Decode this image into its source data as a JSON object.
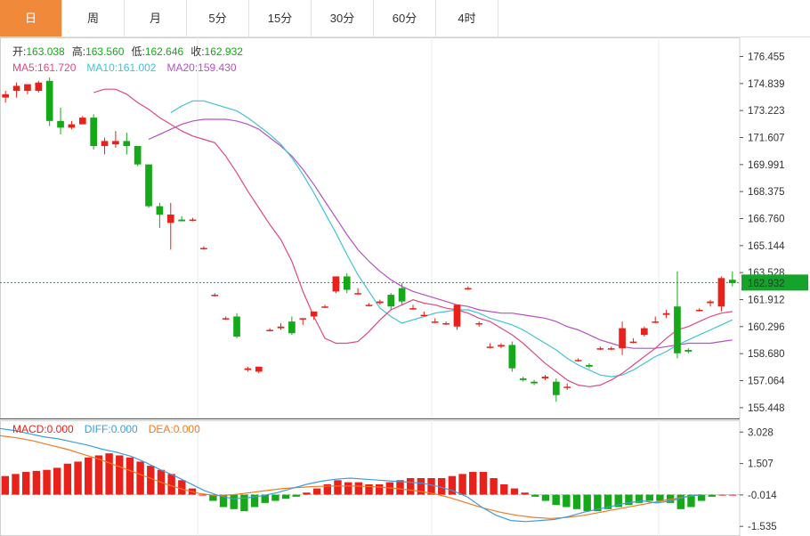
{
  "tabs": [
    {
      "label": "日",
      "active": true
    },
    {
      "label": "周",
      "active": false
    },
    {
      "label": "月",
      "active": false
    },
    {
      "label": "5分",
      "active": false
    },
    {
      "label": "15分",
      "active": false
    },
    {
      "label": "30分",
      "active": false
    },
    {
      "label": "60分",
      "active": false
    },
    {
      "label": "4时",
      "active": false
    }
  ],
  "colors": {
    "up": "#e8211a",
    "down": "#15a819",
    "ma5": "#e0487e",
    "ma10": "#3fc3d6",
    "ma20": "#b452c2",
    "diff": "#3c9ee0",
    "dea": "#f07a24",
    "current": "#14a42b",
    "accent": "#f08a3a"
  },
  "chart_data": {
    "type": "candlestick",
    "ohlc_legend": {
      "open_label": "开:",
      "open": "163.038",
      "high_label": "高:",
      "high": "163.560",
      "low_label": "低:",
      "low": "162.646",
      "close_label": "收:",
      "close": "162.932"
    },
    "ma_legend": [
      {
        "name": "MA5:",
        "value": "161.720",
        "color_key": "ma5"
      },
      {
        "name": "MA10:",
        "value": "161.002",
        "color_key": "ma10"
      },
      {
        "name": "MA20:",
        "value": "159.430",
        "color_key": "ma20"
      }
    ],
    "macd_legend": [
      {
        "name": "MACD:",
        "value": "0.000",
        "color_key": "up"
      },
      {
        "name": "DIFF:",
        "value": "0.000",
        "color_key": "diff"
      },
      {
        "name": "DEA:",
        "value": "0.000",
        "color_key": "dea"
      }
    ],
    "price_ticks": [
      "176.455",
      "174.839",
      "173.223",
      "171.607",
      "169.991",
      "168.375",
      "166.760",
      "165.144",
      "163.528",
      "161.912",
      "160.296",
      "158.680",
      "157.064",
      "155.448"
    ],
    "price_ylim": [
      154.8,
      177.6
    ],
    "current_price": "162.932",
    "macd_ticks": [
      "3.028",
      "1.507",
      "-0.014",
      "-1.535"
    ],
    "macd_ylim": [
      -2.0,
      3.6
    ],
    "candles": [
      [
        174.0,
        174.4,
        173.7,
        174.2
      ],
      [
        174.4,
        174.9,
        174.0,
        174.7
      ],
      [
        174.4,
        174.8,
        174.2,
        174.8
      ],
      [
        174.4,
        175.0,
        174.3,
        174.9
      ],
      [
        175.0,
        175.2,
        172.3,
        172.6
      ],
      [
        172.6,
        173.4,
        171.8,
        172.2
      ],
      [
        172.2,
        172.6,
        172.1,
        172.4
      ],
      [
        172.4,
        172.9,
        172.4,
        172.8
      ],
      [
        172.8,
        173.0,
        170.9,
        171.1
      ],
      [
        171.1,
        171.6,
        170.6,
        171.4
      ],
      [
        171.2,
        172.0,
        171.0,
        171.4
      ],
      [
        171.4,
        171.9,
        170.6,
        171.1
      ],
      [
        171.1,
        171.1,
        169.9,
        170.0
      ],
      [
        170.0,
        170.0,
        167.4,
        167.5
      ],
      [
        167.5,
        167.7,
        166.2,
        167.0
      ],
      [
        166.5,
        167.7,
        164.9,
        167.0
      ],
      [
        166.7,
        166.9,
        166.6,
        166.6
      ],
      [
        166.7,
        166.8,
        166.6,
        166.7
      ],
      [
        165.0,
        165.1,
        164.9,
        165.0
      ],
      [
        162.2,
        162.3,
        162.1,
        162.2
      ],
      [
        160.8,
        160.9,
        160.7,
        160.8
      ],
      [
        160.9,
        161.1,
        159.6,
        159.7
      ],
      [
        157.7,
        157.9,
        157.6,
        157.8
      ],
      [
        157.6,
        157.9,
        157.5,
        157.9
      ],
      [
        160.1,
        160.2,
        160.0,
        160.1
      ],
      [
        160.2,
        160.5,
        160.1,
        160.3
      ],
      [
        160.6,
        160.9,
        159.8,
        159.9
      ],
      [
        160.8,
        160.8,
        160.4,
        160.8
      ],
      [
        160.9,
        161.2,
        160.7,
        161.2
      ],
      [
        161.5,
        161.6,
        161.4,
        161.5
      ],
      [
        162.4,
        163.3,
        162.3,
        163.3
      ],
      [
        163.3,
        163.5,
        162.3,
        162.5
      ],
      [
        162.3,
        162.6,
        162.2,
        162.3
      ],
      [
        161.6,
        161.7,
        161.5,
        161.6
      ],
      [
        161.7,
        161.9,
        161.6,
        161.8
      ],
      [
        162.2,
        162.3,
        161.3,
        161.5
      ],
      [
        162.6,
        162.9,
        161.6,
        161.8
      ],
      [
        161.4,
        161.6,
        161.3,
        161.4
      ],
      [
        161.0,
        161.2,
        160.9,
        161.0
      ],
      [
        160.6,
        160.8,
        160.5,
        160.6
      ],
      [
        160.5,
        160.6,
        160.4,
        160.5
      ],
      [
        160.3,
        161.6,
        160.1,
        161.6
      ],
      [
        162.6,
        162.7,
        162.5,
        162.6
      ],
      [
        160.5,
        160.6,
        160.3,
        160.5
      ],
      [
        159.1,
        159.3,
        159.0,
        159.1
      ],
      [
        159.1,
        159.3,
        159.0,
        159.2
      ],
      [
        159.2,
        159.4,
        157.6,
        157.8
      ],
      [
        157.2,
        157.3,
        157.0,
        157.1
      ],
      [
        157.0,
        157.1,
        156.8,
        156.9
      ],
      [
        157.2,
        157.4,
        157.1,
        157.3
      ],
      [
        157.0,
        157.2,
        155.8,
        156.2
      ],
      [
        156.7,
        156.9,
        156.5,
        156.7
      ],
      [
        158.3,
        158.4,
        158.2,
        158.3
      ],
      [
        158.0,
        158.1,
        157.8,
        157.9
      ],
      [
        159.0,
        159.1,
        158.9,
        159.0
      ],
      [
        159.0,
        159.1,
        158.9,
        159.0
      ],
      [
        159.0,
        160.6,
        158.6,
        160.2
      ],
      [
        159.4,
        159.6,
        159.3,
        159.4
      ],
      [
        159.8,
        160.3,
        159.7,
        160.2
      ],
      [
        160.6,
        160.9,
        160.5,
        160.6
      ],
      [
        161.0,
        161.3,
        160.8,
        161.1
      ],
      [
        161.5,
        163.6,
        158.4,
        158.7
      ],
      [
        158.9,
        159.0,
        158.7,
        158.8
      ],
      [
        161.3,
        161.4,
        161.2,
        161.3
      ],
      [
        161.7,
        161.9,
        161.5,
        161.8
      ],
      [
        161.5,
        163.3,
        161.2,
        163.2
      ],
      [
        163.1,
        163.6,
        162.7,
        162.9
      ]
    ],
    "ma5": [
      174.3,
      174.5,
      174.5,
      174.2,
      173.7,
      173.3,
      172.8,
      172.4,
      172.0,
      171.7,
      171.5,
      171.3,
      170.5,
      169.5,
      168.4,
      167.4,
      166.4,
      165.5,
      164.2,
      162.4,
      160.9,
      159.6,
      159.3,
      159.3,
      159.4,
      160.0,
      160.7,
      161.3,
      161.6,
      161.9,
      161.7,
      161.6,
      161.4,
      161.3,
      161.1,
      160.8,
      160.6,
      160.2,
      159.8,
      159.3,
      158.7,
      158.1,
      157.6,
      157.1,
      156.8,
      156.7,
      156.8,
      157.1,
      157.5,
      158.0,
      158.5,
      159.0,
      159.6,
      160.1,
      160.3,
      160.6,
      160.9,
      161.1,
      161.2
    ],
    "ma10": [
      173.1,
      173.5,
      173.8,
      173.8,
      173.6,
      173.4,
      173.2,
      172.8,
      172.3,
      171.8,
      171.2,
      170.4,
      169.4,
      168.3,
      167.1,
      165.9,
      164.6,
      163.4,
      162.4,
      161.4,
      160.9,
      160.5,
      160.7,
      160.9,
      161.1,
      161.2,
      161.3,
      161.3,
      161.1,
      160.8,
      160.6,
      160.4,
      160.1,
      159.7,
      159.3,
      158.9,
      158.4,
      158.0,
      157.7,
      157.4,
      157.3,
      157.4,
      157.7,
      158.1,
      158.5,
      158.8,
      159.2,
      159.5,
      159.8,
      160.1,
      160.4,
      160.7
    ],
    "ma20": [
      171.5,
      171.8,
      172.1,
      172.4,
      172.6,
      172.7,
      172.7,
      172.7,
      172.6,
      172.4,
      172.1,
      171.6,
      171.1,
      170.5,
      169.7,
      168.8,
      167.8,
      166.8,
      165.8,
      164.9,
      164.2,
      163.6,
      163.1,
      162.7,
      162.4,
      162.2,
      162.0,
      161.8,
      161.6,
      161.5,
      161.3,
      161.2,
      161.1,
      161.1,
      161.0,
      160.9,
      160.8,
      160.6,
      160.3,
      160.1,
      159.8,
      159.5,
      159.3,
      159.1,
      159.0,
      159.0,
      159.0,
      159.1,
      159.2,
      159.3,
      159.3,
      159.3,
      159.4,
      159.5
    ],
    "macd_bars": [
      0.9,
      1.0,
      1.1,
      1.15,
      1.2,
      1.3,
      1.5,
      1.6,
      1.8,
      1.9,
      2.0,
      1.9,
      1.8,
      1.6,
      1.4,
      1.2,
      1.0,
      0.7,
      0.3,
      0.0,
      -0.3,
      -0.6,
      -0.7,
      -0.8,
      -0.6,
      -0.4,
      -0.3,
      -0.2,
      -0.1,
      0.1,
      0.3,
      0.5,
      0.7,
      0.6,
      0.6,
      0.5,
      0.5,
      0.6,
      0.7,
      0.8,
      0.8,
      0.8,
      0.8,
      0.9,
      1.0,
      1.1,
      1.1,
      0.8,
      0.5,
      0.3,
      0.1,
      -0.1,
      -0.3,
      -0.5,
      -0.6,
      -0.7,
      -0.8,
      -0.8,
      -0.7,
      -0.6,
      -0.5,
      -0.4,
      -0.3,
      -0.3,
      -0.4,
      -0.7,
      -0.6,
      -0.3,
      -0.1,
      0.0,
      0.0
    ],
    "diff": [
      3.2,
      3.1,
      2.95,
      2.8,
      2.7,
      2.55,
      2.4,
      2.2,
      2.05,
      1.85,
      1.55,
      1.2,
      0.9,
      0.55,
      0.2,
      -0.05,
      -0.2,
      -0.15,
      -0.05,
      0.1,
      0.3,
      0.5,
      0.65,
      0.75,
      0.8,
      0.75,
      0.7,
      0.65,
      0.6,
      0.55,
      0.4,
      0.2,
      -0.1,
      -0.6,
      -1.0,
      -1.25,
      -1.3,
      -1.25,
      -1.2,
      -1.05,
      -0.85,
      -0.7,
      -0.55,
      -0.4,
      -0.3,
      -0.4,
      -0.3,
      -0.1,
      0.0
    ],
    "dea": [
      2.85,
      2.75,
      2.6,
      2.4,
      2.2,
      1.95,
      1.7,
      1.4,
      1.1,
      0.8,
      0.5,
      0.25,
      0.05,
      -0.05,
      0.0,
      0.1,
      0.2,
      0.3,
      0.35,
      0.4,
      0.42,
      0.42,
      0.4,
      0.35,
      0.28,
      0.18,
      0.05,
      -0.15,
      -0.4,
      -0.65,
      -0.85,
      -1.0,
      -1.1,
      -1.15,
      -1.1,
      -1.0,
      -0.85,
      -0.7,
      -0.55,
      -0.4,
      -0.25,
      -0.12,
      0.0
    ]
  }
}
